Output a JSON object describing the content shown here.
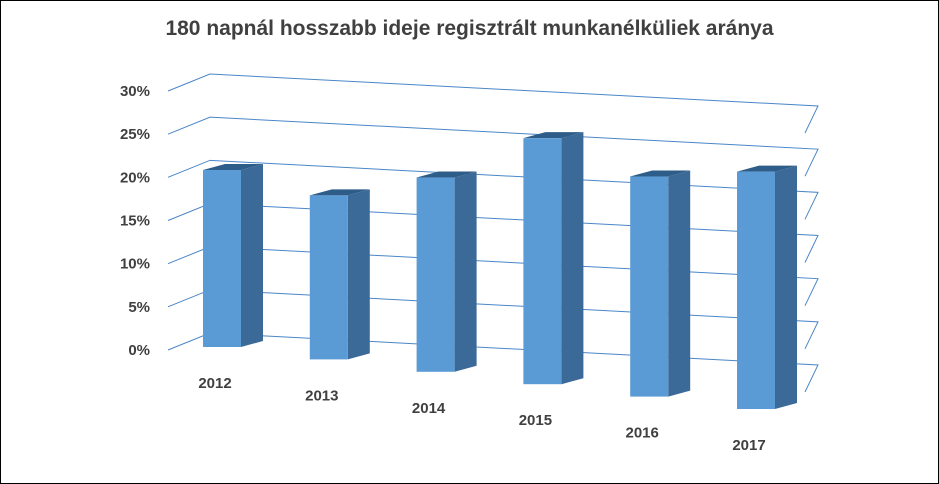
{
  "chart_data": {
    "type": "bar",
    "title": "180 napnál hosszabb ideje regisztrált munkanélküliek aránya",
    "categories": [
      "2012",
      "2013",
      "2014",
      "2015",
      "2016",
      "2017"
    ],
    "values": [
      20.5,
      19.0,
      22.5,
      28.5,
      25.5,
      27.5
    ],
    "ylim": [
      0,
      30
    ],
    "yticks": [
      "0%",
      "5%",
      "10%",
      "15%",
      "20%",
      "25%",
      "30%"
    ],
    "grid": true,
    "colors": {
      "bar_front": "#5b9bd5",
      "bar_side": "#3c6a98",
      "bar_top": "#2f5d8a",
      "grid": "#4a86c8",
      "text": "#404040"
    }
  }
}
